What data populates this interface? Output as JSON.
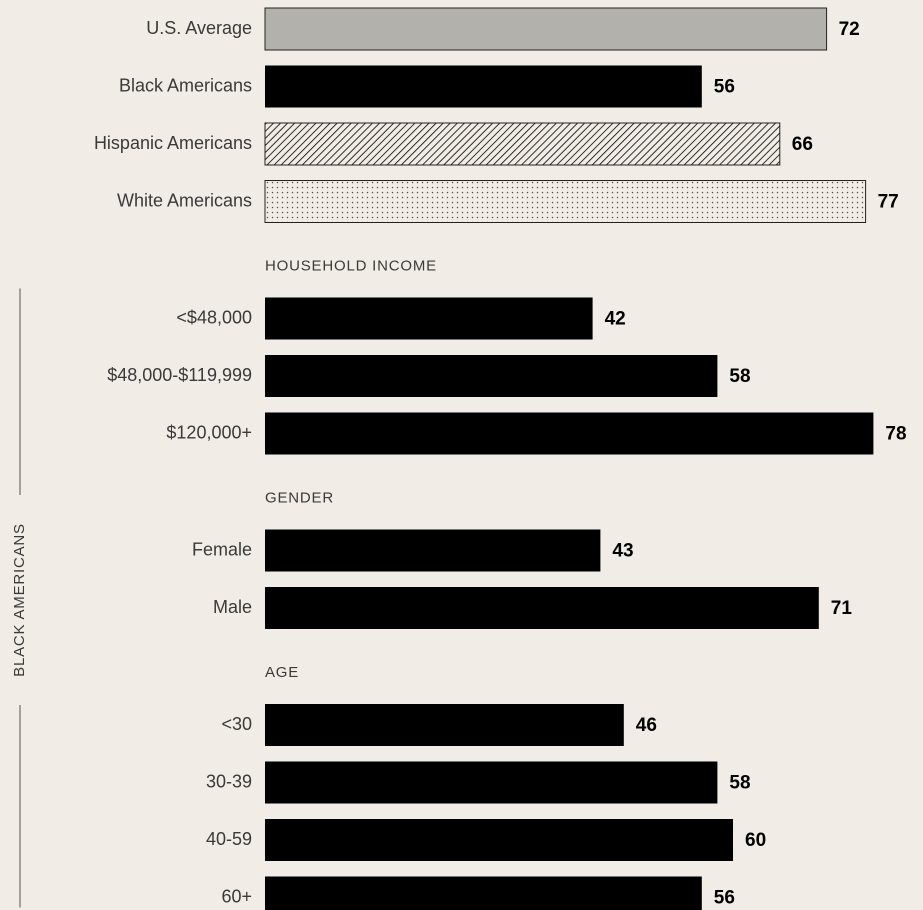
{
  "chart_data": {
    "type": "bar",
    "bracket_label": "BLACK AMERICANS",
    "groups": [
      {
        "categories": [
          "U.S. Average",
          "Black Americans",
          "Hispanic Americans",
          "White Americans"
        ],
        "values": [
          72,
          56,
          66,
          77
        ],
        "fills": [
          "#b3b1ab",
          "#000000",
          "hatch",
          "dots"
        ]
      },
      {
        "title": "HOUSEHOLD INCOME",
        "categories": [
          "<$48,000",
          "$48,000-$119,999",
          "$120,000+"
        ],
        "values": [
          42,
          58,
          78
        ],
        "fills": [
          "#000000",
          "#000000",
          "#000000"
        ]
      },
      {
        "title": "GENDER",
        "categories": [
          "Female",
          "Male"
        ],
        "values": [
          43,
          71
        ],
        "fills": [
          "#000000",
          "#000000"
        ]
      },
      {
        "title": "AGE",
        "categories": [
          "<30",
          "30-39",
          "40-59",
          "60+"
        ],
        "values": [
          46,
          58,
          60,
          56
        ],
        "fills": [
          "#000000",
          "#000000",
          "#000000",
          "#000000"
        ]
      }
    ]
  }
}
